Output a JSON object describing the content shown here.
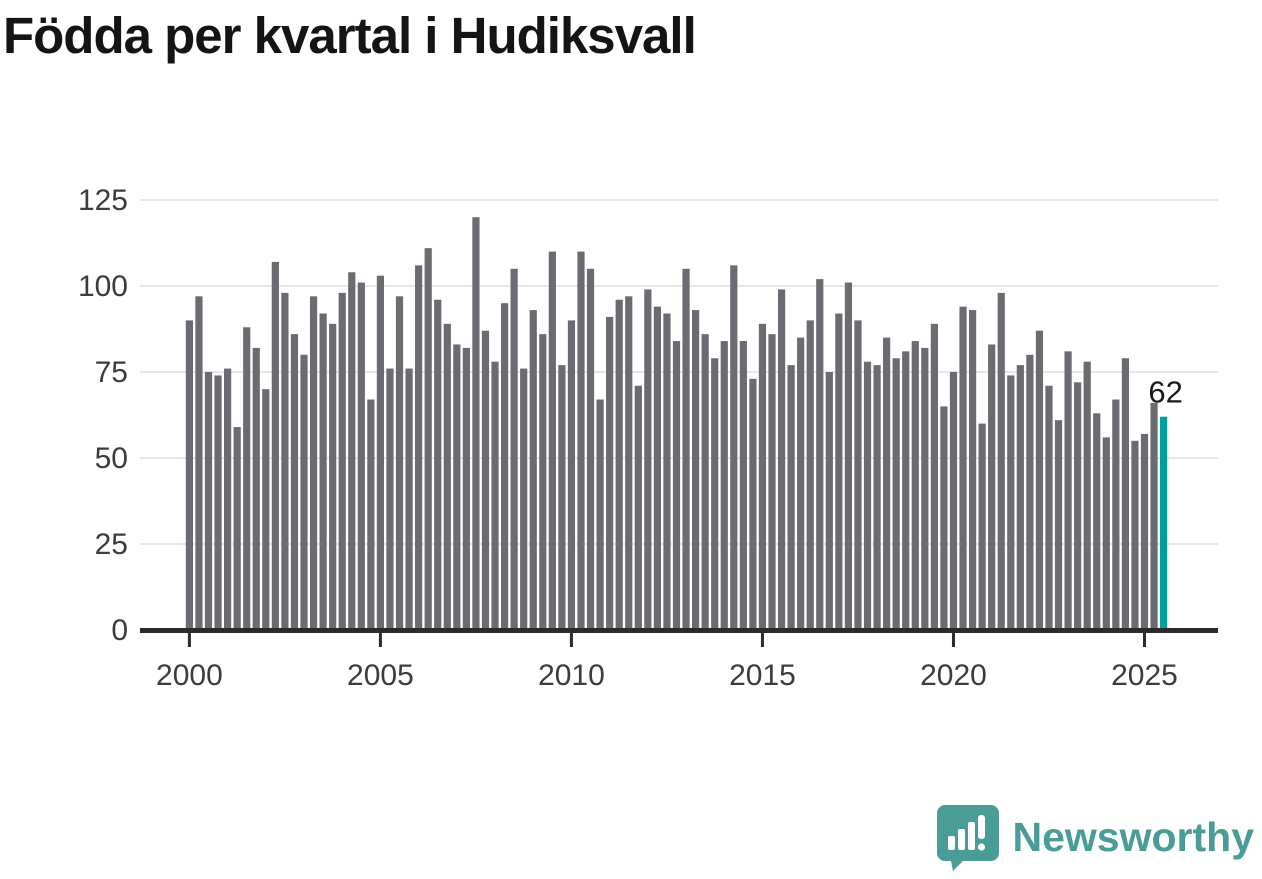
{
  "title": "Födda per kvartal i Hudiksvall",
  "chart_data": {
    "type": "bar",
    "title": "Födda per kvartal i Hudiksvall",
    "xlabel": "",
    "ylabel": "",
    "ylim": [
      0,
      125
    ],
    "yticks": [
      0,
      25,
      50,
      75,
      100,
      125
    ],
    "xtick_years": [
      "2000",
      "2005",
      "2010",
      "2015",
      "2020",
      "2025"
    ],
    "grid": true,
    "legend_position": "none",
    "bar_color": "#6c6b71",
    "highlight_color": "#00a099",
    "axis_color": "#2b2b2b",
    "grid_color": "#e7e7e7",
    "tick_label_color": "#3c3c3c",
    "annotation": {
      "text": "62",
      "index": 102
    },
    "x": [
      "2000Q1",
      "2000Q2",
      "2000Q3",
      "2000Q4",
      "2001Q1",
      "2001Q2",
      "2001Q3",
      "2001Q4",
      "2002Q1",
      "2002Q2",
      "2002Q3",
      "2002Q4",
      "2003Q1",
      "2003Q2",
      "2003Q3",
      "2003Q4",
      "2004Q1",
      "2004Q2",
      "2004Q3",
      "2004Q4",
      "2005Q1",
      "2005Q2",
      "2005Q3",
      "2005Q4",
      "2006Q1",
      "2006Q2",
      "2006Q3",
      "2006Q4",
      "2007Q1",
      "2007Q2",
      "2007Q3",
      "2007Q4",
      "2008Q1",
      "2008Q2",
      "2008Q3",
      "2008Q4",
      "2009Q1",
      "2009Q2",
      "2009Q3",
      "2009Q4",
      "2010Q1",
      "2010Q2",
      "2010Q3",
      "2010Q4",
      "2011Q1",
      "2011Q2",
      "2011Q3",
      "2011Q4",
      "2012Q1",
      "2012Q2",
      "2012Q3",
      "2012Q4",
      "2013Q1",
      "2013Q2",
      "2013Q3",
      "2013Q4",
      "2014Q1",
      "2014Q2",
      "2014Q3",
      "2014Q4",
      "2015Q1",
      "2015Q2",
      "2015Q3",
      "2015Q4",
      "2016Q1",
      "2016Q2",
      "2016Q3",
      "2016Q4",
      "2017Q1",
      "2017Q2",
      "2017Q3",
      "2017Q4",
      "2018Q1",
      "2018Q2",
      "2018Q3",
      "2018Q4",
      "2019Q1",
      "2019Q2",
      "2019Q3",
      "2019Q4",
      "2020Q1",
      "2020Q2",
      "2020Q3",
      "2020Q4",
      "2021Q1",
      "2021Q2",
      "2021Q3",
      "2021Q4",
      "2022Q1",
      "2022Q2",
      "2022Q3",
      "2022Q4",
      "2023Q1",
      "2023Q2",
      "2023Q3",
      "2023Q4",
      "2024Q1",
      "2024Q2",
      "2024Q3",
      "2024Q4",
      "2025Q1",
      "2025Q2",
      "2025Q3"
    ],
    "values": [
      90,
      97,
      75,
      74,
      76,
      59,
      88,
      82,
      70,
      107,
      98,
      86,
      80,
      97,
      92,
      89,
      98,
      104,
      101,
      67,
      103,
      76,
      97,
      76,
      106,
      111,
      96,
      89,
      83,
      82,
      120,
      87,
      78,
      95,
      105,
      76,
      93,
      86,
      110,
      77,
      90,
      110,
      105,
      67,
      91,
      96,
      97,
      71,
      99,
      94,
      92,
      84,
      105,
      93,
      86,
      79,
      84,
      106,
      84,
      73,
      89,
      86,
      99,
      77,
      85,
      90,
      102,
      75,
      92,
      101,
      90,
      78,
      77,
      85,
      79,
      81,
      84,
      82,
      89,
      65,
      75,
      94,
      93,
      60,
      83,
      98,
      74,
      77,
      80,
      87,
      71,
      61,
      81,
      72,
      78,
      63,
      56,
      67,
      79,
      55,
      57,
      66,
      62
    ]
  },
  "footer": {
    "brand": "Newsworthy",
    "brand_color": "#4a9c96",
    "logo_icon": "speech-bubble-bar-chart-icon"
  }
}
